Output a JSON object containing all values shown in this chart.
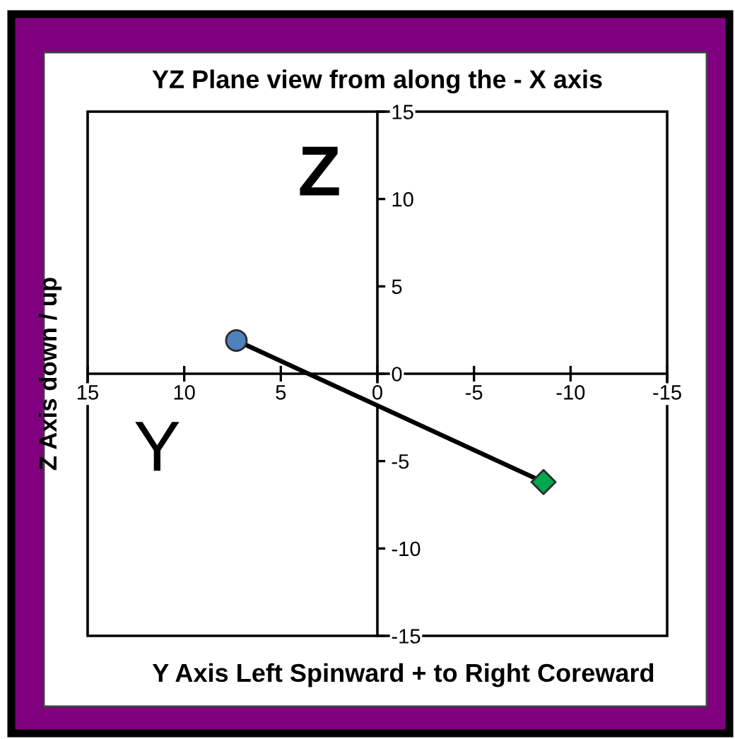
{
  "chart_data": {
    "type": "line",
    "title": "YZ Plane view from along the - X axis",
    "xlabel": "Y Axis Left Spinward + to Right Coreward",
    "ylabel": "Z Axis down / up",
    "annotations": [
      "Z",
      "Y"
    ],
    "xlim": [
      15,
      -15
    ],
    "ylim": [
      -15,
      15
    ],
    "xticks": [
      15,
      10,
      5,
      0,
      -5,
      -10,
      -15
    ],
    "yticks": [
      -15,
      -10,
      -5,
      0,
      5,
      10,
      15
    ],
    "series": [
      {
        "color": "#000000",
        "x": [
          7.3,
          -8.6
        ],
        "values": [
          1.9,
          -6.2
        ],
        "colors": [
          "#4f81bd",
          "#00a651"
        ],
        "marker": [
          "circle",
          "diamond"
        ]
      }
    ]
  }
}
